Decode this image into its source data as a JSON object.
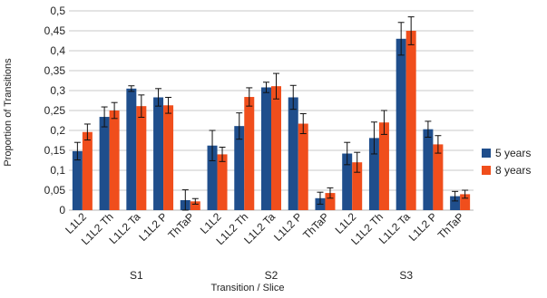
{
  "chart_data": {
    "type": "bar",
    "title": "",
    "xlabel": "Transition / Slice",
    "ylabel": "Proportion of Transitions",
    "ylim": [
      0,
      0.5
    ],
    "yticks": [
      "0",
      "0,05",
      "0,1",
      "0,15",
      "0,2",
      "0,25",
      "0,3",
      "0,35",
      "0,4",
      "0,45",
      "0,5"
    ],
    "ytick_values": [
      0,
      0.05,
      0.1,
      0.15,
      0.2,
      0.25,
      0.3,
      0.35,
      0.4,
      0.45,
      0.5
    ],
    "grid": true,
    "legend_position": "right",
    "categories": [
      "L1L2",
      "L1L2 Th",
      "L1L2 Ta",
      "L1L2 P",
      "ThTaP",
      "L1L2",
      "L1L2 Th",
      "L1L2 Ta",
      "L1L2 P",
      "ThTaP",
      "L1L2",
      "L1L2 Th",
      "L1L2 Ta",
      "L1L2 P",
      "ThTaP"
    ],
    "groups": [
      {
        "label": "S1",
        "start": 0,
        "count": 5
      },
      {
        "label": "S2",
        "start": 5,
        "count": 5
      },
      {
        "label": "S3",
        "start": 10,
        "count": 5
      }
    ],
    "series": [
      {
        "name": "5 years",
        "color": "#1f4e8c",
        "values": [
          0.148,
          0.234,
          0.305,
          0.283,
          0.025,
          0.162,
          0.211,
          0.308,
          0.283,
          0.03,
          0.142,
          0.181,
          0.43,
          0.203,
          0.035
        ],
        "errors": [
          0.022,
          0.025,
          0.007,
          0.022,
          0.026,
          0.038,
          0.033,
          0.013,
          0.03,
          0.015,
          0.028,
          0.04,
          0.041,
          0.02,
          0.012
        ]
      },
      {
        "name": "8 years",
        "color": "#f04e1c",
        "values": [
          0.196,
          0.25,
          0.261,
          0.263,
          0.022,
          0.14,
          0.284,
          0.311,
          0.217,
          0.043,
          0.12,
          0.22,
          0.45,
          0.165,
          0.04
        ],
        "errors": [
          0.02,
          0.02,
          0.028,
          0.02,
          0.007,
          0.018,
          0.023,
          0.032,
          0.025,
          0.013,
          0.025,
          0.03,
          0.035,
          0.022,
          0.01
        ]
      }
    ]
  }
}
